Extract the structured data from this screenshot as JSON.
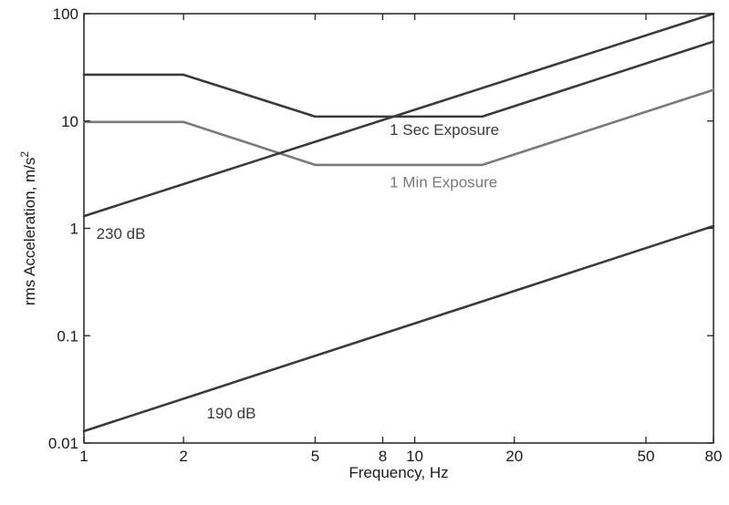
{
  "chart_data": {
    "type": "line",
    "title": "",
    "xlabel": "Frequency, Hz",
    "ylabel": "rms Acceleration, m/s",
    "ylabel_superscript": "2",
    "x_scale": "log",
    "y_scale": "log",
    "xlim": [
      1,
      80
    ],
    "ylim": [
      0.01,
      100
    ],
    "grid": false,
    "x_ticks": [
      1,
      2,
      5,
      8,
      10,
      20,
      50,
      80
    ],
    "x_tick_labels": [
      "1",
      "2",
      "5",
      "8",
      "10",
      "20",
      "50",
      "80"
    ],
    "y_ticks": [
      0.01,
      0.1,
      1,
      10,
      100
    ],
    "y_tick_labels": [
      "0.01",
      "0.1",
      "1",
      "10",
      "100"
    ],
    "series": [
      {
        "label": "1 Sec Exposure",
        "color": "#3a3a3a",
        "x": [
          1,
          2,
          5,
          16,
          80
        ],
        "y": [
          27,
          27,
          11,
          11,
          55
        ]
      },
      {
        "label": "1 Min Exposure",
        "color": "#7a7a7a",
        "x": [
          1,
          2,
          5,
          16,
          80
        ],
        "y": [
          9.8,
          9.8,
          3.9,
          3.9,
          19.5
        ]
      },
      {
        "label": "230 dB",
        "color": "#3a3a3a",
        "x": [
          1,
          80
        ],
        "y": [
          1.3,
          100
        ]
      },
      {
        "label": "190 dB",
        "color": "#3a3a3a",
        "x": [
          1,
          80
        ],
        "y": [
          0.0129,
          1.05
        ]
      }
    ],
    "annotations": [
      {
        "text": "1 Sec Exposure",
        "x": 8.4,
        "y": 7.4,
        "color": "#3a3a3a"
      },
      {
        "text": "1 Min Exposure",
        "x": 8.4,
        "y": 2.4,
        "color": "#7a7a7a"
      },
      {
        "text": "230 dB",
        "x": 1.09,
        "y": 0.8,
        "color": "#3a3a3a"
      },
      {
        "text": "190 dB",
        "x": 2.35,
        "y": 0.017,
        "color": "#3a3a3a"
      }
    ]
  }
}
